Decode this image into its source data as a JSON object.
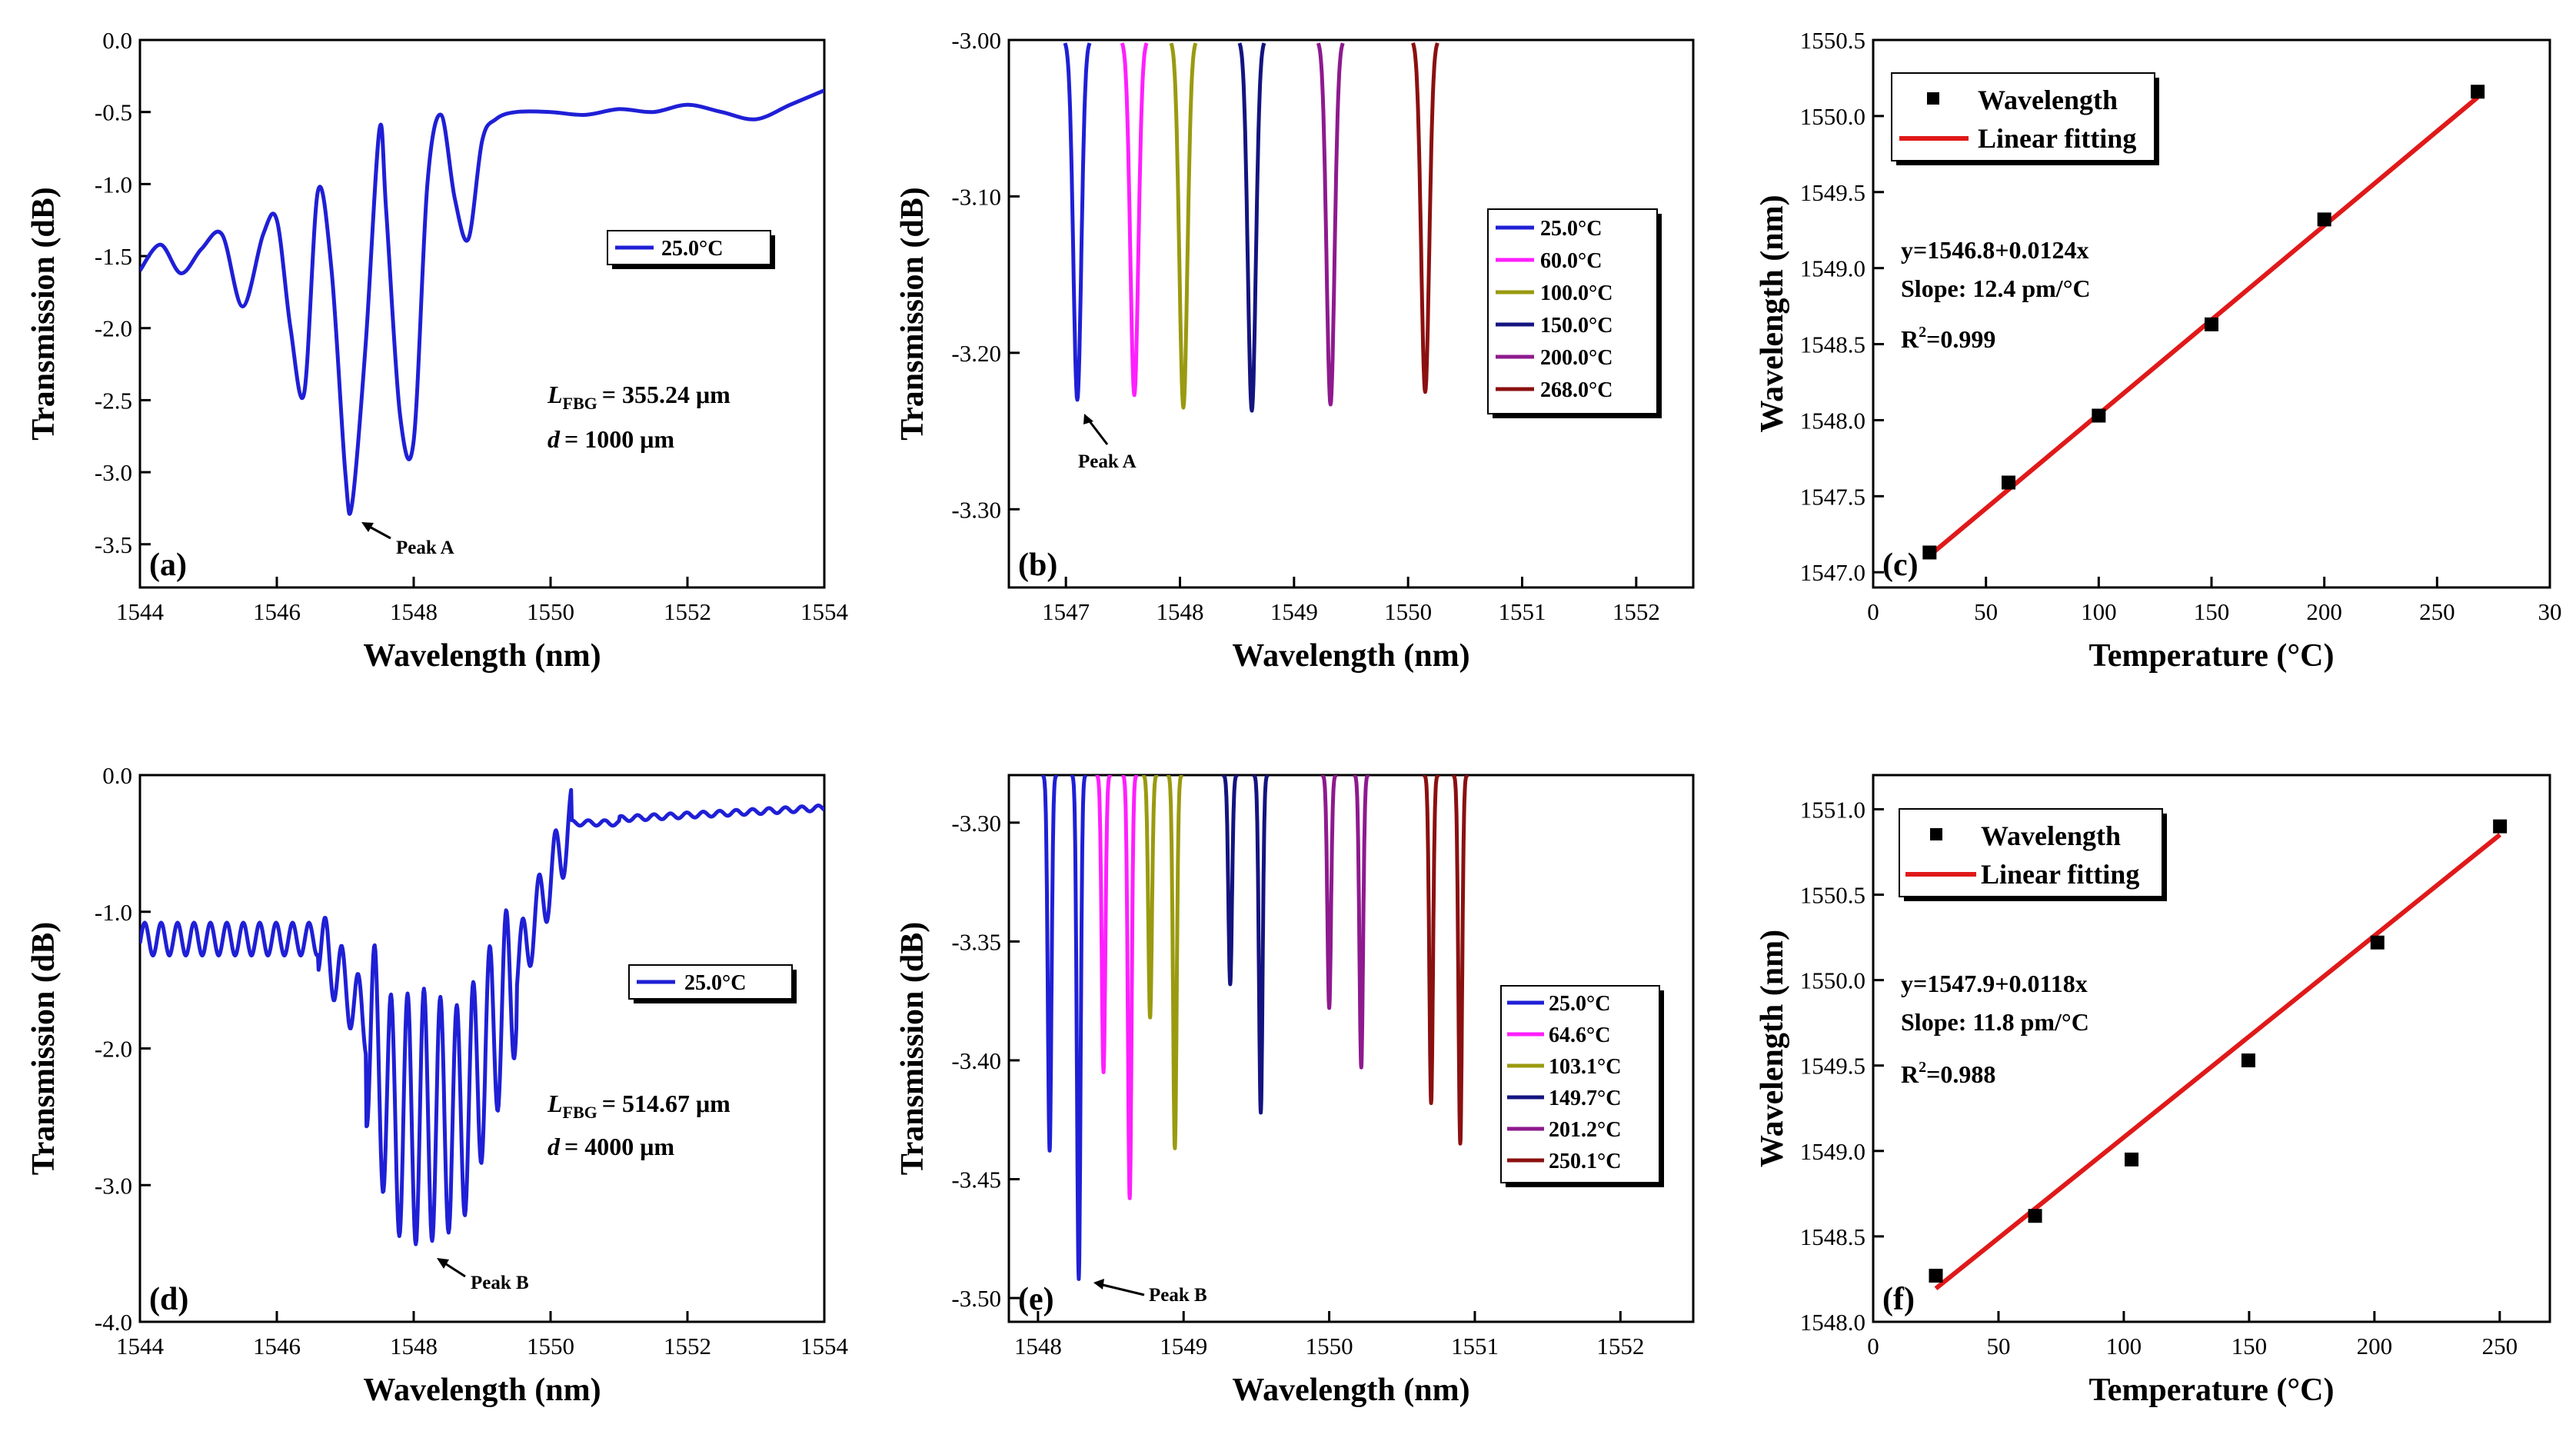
{
  "colors": {
    "blue": "#1f1fd6",
    "magenta": "#ff1fff",
    "olive": "#9a9a10",
    "navy": "#141480",
    "purple": "#8e1a8e",
    "darkred": "#8b1010",
    "red": "#e01919",
    "black": "#000000"
  },
  "chart_data": [
    {
      "id": "a",
      "type": "line",
      "panel_label": "(a)",
      "xlabel": "Wavelength (nm)",
      "ylabel": "Transmission (dB)",
      "xlim": [
        1544,
        1554
      ],
      "ylim": [
        -3.8,
        0.0
      ],
      "xticks": [
        "1544",
        "1546",
        "1548",
        "1550",
        "1552",
        "1554"
      ],
      "yticks": [
        "0.0",
        "-0.5",
        "-1.0",
        "-1.5",
        "-2.0",
        "-2.5",
        "-3.0",
        "-3.5"
      ],
      "series": [
        {
          "name": "25.0°C",
          "color": "#1f1fd6",
          "x": [
            1544.0,
            1544.3,
            1544.6,
            1544.9,
            1545.2,
            1545.5,
            1545.8,
            1546.0,
            1546.2,
            1546.4,
            1546.6,
            1546.8,
            1547.0,
            1547.1,
            1547.3,
            1547.5,
            1547.6,
            1547.8,
            1548.0,
            1548.2,
            1548.4,
            1548.6,
            1548.8,
            1549.0,
            1549.2,
            1549.5,
            1550.0,
            1550.5,
            1551.0,
            1551.5,
            1552.0,
            1552.5,
            1553.0,
            1553.5,
            1554.0
          ],
          "y": [
            -1.6,
            -1.42,
            -1.62,
            -1.45,
            -1.35,
            -1.85,
            -1.35,
            -1.25,
            -2.0,
            -2.45,
            -1.05,
            -1.6,
            -3.0,
            -3.22,
            -2.1,
            -0.62,
            -1.2,
            -2.6,
            -2.78,
            -1.0,
            -0.52,
            -1.1,
            -1.38,
            -0.7,
            -0.55,
            -0.5,
            -0.5,
            -0.52,
            -0.48,
            -0.5,
            -0.45,
            -0.5,
            -0.55,
            -0.45,
            -0.35
          ]
        }
      ],
      "legend": [
        "25.0°C"
      ],
      "annotations": [
        "Peak A",
        "= 355.24 μm",
        "= 1000 μm"
      ],
      "annotation_terms": {
        "lfbg": "L",
        "lfbg_sub": "FBG",
        "d": "d"
      }
    },
    {
      "id": "b",
      "type": "line",
      "panel_label": "(b)",
      "xlabel": "Wavelength (nm)",
      "ylabel": "Transmission (dB)",
      "xlim": [
        1546.5,
        1552.5
      ],
      "ylim": [
        -3.35,
        -3.0
      ],
      "xticks": [
        "1547",
        "1548",
        "1549",
        "1550",
        "1551",
        "1552"
      ],
      "yticks": [
        "-3.00",
        "-3.10",
        "-3.20",
        "-3.30"
      ],
      "series": [
        {
          "name": "25.0°C",
          "color": "#1f1fd6",
          "center": 1547.1,
          "min": -3.23
        },
        {
          "name": "60.0°C",
          "color": "#ff1fff",
          "center": 1547.6,
          "min": -3.227
        },
        {
          "name": "100.0°C",
          "color": "#9a9a10",
          "center": 1548.03,
          "min": -3.235
        },
        {
          "name": "150.0°C",
          "color": "#141480",
          "center": 1548.63,
          "min": -3.237
        },
        {
          "name": "200.0°C",
          "color": "#8e1a8e",
          "center": 1549.32,
          "min": -3.233
        },
        {
          "name": "268.0°C",
          "color": "#8b1010",
          "center": 1550.15,
          "min": -3.225
        }
      ],
      "legend": [
        "25.0°C",
        "60.0°C",
        "100.0°C",
        "150.0°C",
        "200.0°C",
        "268.0°C"
      ],
      "annotations": [
        "Peak A"
      ]
    },
    {
      "id": "c",
      "type": "scatter",
      "panel_label": "(c)",
      "xlabel": "Temperature (°C)",
      "ylabel": "Wavelength (nm)",
      "xlim": [
        0,
        300
      ],
      "ylim": [
        1546.9,
        1550.5
      ],
      "xticks": [
        "0",
        "50",
        "100",
        "150",
        "200",
        "250",
        "30"
      ],
      "yticks": [
        "1547.0",
        "1547.5",
        "1548.0",
        "1548.5",
        "1549.0",
        "1549.5",
        "1550.0",
        "1550.5"
      ],
      "x": [
        25,
        60,
        100,
        150,
        200,
        268
      ],
      "y": [
        1547.13,
        1547.59,
        1548.03,
        1548.63,
        1549.32,
        1550.16
      ],
      "fit": {
        "intercept": 1546.8,
        "slope": 0.0124,
        "x_range": [
          25,
          268
        ]
      },
      "legend": [
        "Wavelength",
        "Linear fitting"
      ],
      "annotations": [
        "y=1546.8+0.0124x",
        "Slope: 12.4 pm/°C",
        "R",
        "2",
        "=0.999"
      ]
    },
    {
      "id": "d",
      "type": "line",
      "panel_label": "(d)",
      "xlabel": "Wavelength (nm)",
      "ylabel": "Transmission (dB)",
      "xlim": [
        1544,
        1554
      ],
      "ylim": [
        -4.0,
        0.0
      ],
      "xticks": [
        "1544",
        "1546",
        "1548",
        "1550",
        "1552",
        "1554"
      ],
      "yticks": [
        "0.0",
        "-1.0",
        "-2.0",
        "-3.0",
        "-4.0"
      ],
      "series": [
        {
          "name": "25.0°C",
          "color": "#1f1fd6",
          "center": 1548.1,
          "min": -3.45
        }
      ],
      "legend": [
        "25.0°C"
      ],
      "annotations": [
        "Peak B",
        "= 514.67 μm",
        "= 4000 μm"
      ],
      "annotation_terms": {
        "lfbg": "L",
        "lfbg_sub": "FBG",
        "d": "d"
      }
    },
    {
      "id": "e",
      "type": "line",
      "panel_label": "(e)",
      "xlabel": "Wavelength (nm)",
      "ylabel": "Transmission (dB)",
      "xlim": [
        1547.8,
        1552.5
      ],
      "ylim": [
        -3.51,
        -3.28
      ],
      "xticks": [
        "1548",
        "1549",
        "1550",
        "1551",
        "1552"
      ],
      "yticks": [
        "-3.30",
        "-3.35",
        "-3.40",
        "-3.45",
        "-3.50"
      ],
      "series": [
        {
          "name": "25.0°C",
          "color": "#1f1fd6",
          "centers": [
            1548.08,
            1548.28
          ],
          "mins": [
            -3.438,
            -3.492
          ]
        },
        {
          "name": "64.6°C",
          "color": "#ff1fff",
          "centers": [
            1548.45,
            1548.63
          ],
          "mins": [
            -3.405,
            -3.458
          ]
        },
        {
          "name": "103.1°C",
          "color": "#9a9a10",
          "centers": [
            1548.77,
            1548.94
          ],
          "mins": [
            -3.382,
            -3.437
          ]
        },
        {
          "name": "149.7°C",
          "color": "#141480",
          "centers": [
            1549.32,
            1549.53
          ],
          "mins": [
            -3.368,
            -3.422
          ]
        },
        {
          "name": "201.2°C",
          "color": "#8e1a8e",
          "centers": [
            1550.0,
            1550.22
          ],
          "mins": [
            -3.378,
            -3.403
          ]
        },
        {
          "name": "250.1°C",
          "color": "#8b1010",
          "centers": [
            1550.7,
            1550.9
          ],
          "mins": [
            -3.418,
            -3.435
          ]
        }
      ],
      "legend": [
        "25.0°C",
        "64.6°C",
        "103.1°C",
        "149.7°C",
        "201.2°C",
        "250.1°C"
      ],
      "annotations": [
        "Peak B"
      ]
    },
    {
      "id": "f",
      "type": "scatter",
      "panel_label": "(f)",
      "xlabel": "Temperature (°C)",
      "ylabel": "Wavelength (nm)",
      "xlim": [
        0,
        270
      ],
      "ylim": [
        1548.0,
        1551.2
      ],
      "xticks": [
        "0",
        "50",
        "100",
        "150",
        "200",
        "250"
      ],
      "yticks": [
        "1548.0",
        "1548.5",
        "1549.0",
        "1549.5",
        "1550.0",
        "1550.5",
        "1551.0"
      ],
      "x": [
        25,
        64.6,
        103.1,
        149.7,
        201.2,
        250.1
      ],
      "y": [
        1548.27,
        1548.62,
        1548.95,
        1549.53,
        1550.22,
        1550.9
      ],
      "fit": {
        "intercept": 1547.9,
        "slope": 0.0118,
        "x_range": [
          25,
          250.1
        ]
      },
      "legend": [
        "Wavelength",
        "Linear fitting"
      ],
      "annotations": [
        "y=1547.9+0.0118x",
        "Slope: 11.8 pm/°C",
        "R",
        "2",
        "=0.988"
      ]
    }
  ]
}
